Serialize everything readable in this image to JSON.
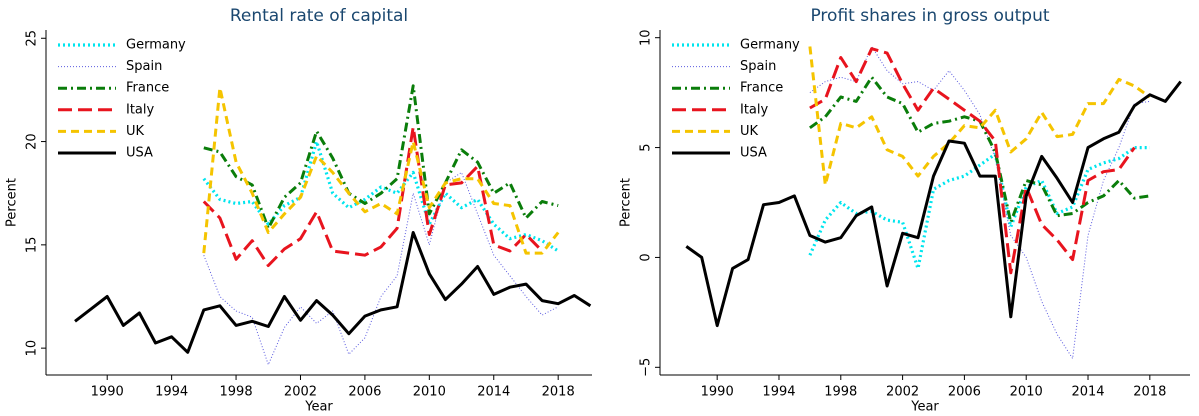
{
  "chart_data": [
    {
      "type": "line",
      "title": "Rental rate of capital",
      "x_label": "Year",
      "y_label": "Percent",
      "x": [
        1988,
        1989,
        1990,
        1991,
        1992,
        1993,
        1994,
        1995,
        1996,
        1997,
        1998,
        1999,
        2000,
        2001,
        2002,
        2003,
        2004,
        2005,
        2006,
        2007,
        2008,
        2009,
        2010,
        2011,
        2012,
        2013,
        2014,
        2015,
        2016,
        2017,
        2018,
        2019,
        2020
      ],
      "xlim": [
        1986.2,
        2020.1
      ],
      "xticks": [
        1990,
        1994,
        1998,
        2002,
        2006,
        2010,
        2014,
        2018
      ],
      "ylim": [
        8.7,
        25.4
      ],
      "yticks": [
        10,
        15,
        20,
        25
      ],
      "legend": "upper left",
      "series": [
        {
          "name": "Germany",
          "color": "#00e5ee",
          "values": [
            null,
            null,
            null,
            null,
            null,
            null,
            null,
            null,
            18.2,
            17.2,
            17.0,
            17.1,
            16.0,
            16.9,
            17.3,
            20.0,
            17.5,
            16.8,
            17.2,
            17.8,
            17.5,
            18.5,
            16.0,
            17.5,
            16.8,
            17.2,
            16.0,
            15.3,
            15.5,
            15.2,
            14.7,
            null,
            null
          ]
        },
        {
          "name": "Spain",
          "color": "#5a5ae0",
          "values": [
            null,
            null,
            null,
            null,
            null,
            null,
            null,
            null,
            14.5,
            12.5,
            11.8,
            11.5,
            9.2,
            11.0,
            12.0,
            11.2,
            11.8,
            9.7,
            10.5,
            12.5,
            13.5,
            17.5,
            15.0,
            18.0,
            18.5,
            16.5,
            14.5,
            13.5,
            12.5,
            11.6,
            12.0,
            null,
            null
          ]
        },
        {
          "name": "France",
          "color": "#0a7d0a",
          "values": [
            null,
            null,
            null,
            null,
            null,
            null,
            null,
            null,
            19.7,
            19.5,
            18.3,
            17.9,
            15.8,
            17.3,
            18.0,
            20.5,
            19.2,
            17.5,
            17.0,
            17.5,
            18.2,
            22.7,
            16.5,
            18.0,
            19.6,
            19.0,
            17.5,
            18.0,
            16.3,
            17.1,
            16.9,
            null,
            null
          ]
        },
        {
          "name": "Italy",
          "color": "#e8141e",
          "values": [
            null,
            null,
            null,
            null,
            null,
            null,
            null,
            null,
            17.1,
            16.3,
            14.3,
            15.2,
            14.0,
            14.8,
            15.3,
            16.6,
            14.7,
            14.6,
            14.5,
            14.9,
            15.8,
            20.7,
            15.5,
            17.9,
            18.0,
            18.8,
            15.0,
            14.7,
            15.5,
            14.7,
            null,
            null,
            null
          ]
        },
        {
          "name": "UK",
          "color": "#f5c400",
          "values": [
            null,
            null,
            null,
            null,
            null,
            null,
            null,
            null,
            14.6,
            22.6,
            19.0,
            17.5,
            15.6,
            16.5,
            17.3,
            19.3,
            18.5,
            17.5,
            16.6,
            17.0,
            16.5,
            20.0,
            16.8,
            18.0,
            18.2,
            18.2,
            17.0,
            16.9,
            14.6,
            14.6,
            15.6,
            null,
            null
          ]
        },
        {
          "name": "USA",
          "color": "#000000",
          "values": [
            11.3,
            11.9,
            12.5,
            11.1,
            11.7,
            10.25,
            10.55,
            9.8,
            11.85,
            12.05,
            11.1,
            11.3,
            11.05,
            12.5,
            11.35,
            12.3,
            11.6,
            10.7,
            11.55,
            11.85,
            12.0,
            15.6,
            13.6,
            12.35,
            13.1,
            13.95,
            12.6,
            12.95,
            13.1,
            12.3,
            12.15,
            12.55,
            12.05
          ]
        }
      ]
    },
    {
      "type": "line",
      "title": "Profit shares in gross output",
      "x_label": "Year",
      "y_label": "Percent",
      "x": [
        1988,
        1989,
        1990,
        1991,
        1992,
        1993,
        1994,
        1995,
        1996,
        1997,
        1998,
        1999,
        2000,
        2001,
        2002,
        2003,
        2004,
        2005,
        2006,
        2007,
        2008,
        2009,
        2010,
        2011,
        2012,
        2013,
        2014,
        2015,
        2016,
        2017,
        2018,
        2019,
        2020
      ],
      "xlim": [
        1986.3,
        2020.6
      ],
      "xticks": [
        1990,
        1994,
        1998,
        2002,
        2006,
        2010,
        2014,
        2018
      ],
      "ylim": [
        -5.35,
        10.35
      ],
      "yticks": [
        {
          "value": -5,
          "label": "−5"
        },
        0,
        5,
        10
      ],
      "legend": "upper left",
      "series": [
        {
          "name": "Germany",
          "color": "#00e5ee",
          "values": [
            null,
            null,
            null,
            null,
            null,
            null,
            null,
            null,
            0.1,
            1.7,
            2.5,
            2.0,
            2.1,
            1.7,
            1.6,
            -0.5,
            3.1,
            3.5,
            3.7,
            4.2,
            4.7,
            1.4,
            3.2,
            3.5,
            2.0,
            2.3,
            4.0,
            4.3,
            4.5,
            5.0,
            5.0,
            null,
            null
          ]
        },
        {
          "name": "Spain",
          "color": "#5a5ae0",
          "values": [
            null,
            null,
            null,
            null,
            null,
            null,
            null,
            null,
            7.5,
            8.0,
            8.2,
            8.0,
            9.6,
            8.5,
            7.9,
            8.0,
            7.6,
            8.5,
            7.6,
            6.5,
            4.5,
            1.0,
            0.0,
            -2.0,
            -3.5,
            -4.6,
            1.0,
            3.5,
            5.0,
            7.0,
            7.1,
            null,
            null
          ]
        },
        {
          "name": "France",
          "color": "#0a7d0a",
          "values": [
            null,
            null,
            null,
            null,
            null,
            null,
            null,
            null,
            5.9,
            6.4,
            7.3,
            7.1,
            8.2,
            7.3,
            7.0,
            5.7,
            6.1,
            6.2,
            6.4,
            6.2,
            4.8,
            1.6,
            3.5,
            3.3,
            1.9,
            2.0,
            2.5,
            2.8,
            3.5,
            2.7,
            2.8,
            null,
            null
          ]
        },
        {
          "name": "Italy",
          "color": "#e8141e",
          "values": [
            null,
            null,
            null,
            null,
            null,
            null,
            null,
            null,
            6.8,
            7.2,
            9.1,
            8.0,
            9.5,
            9.3,
            7.9,
            6.7,
            7.7,
            7.2,
            6.7,
            6.2,
            5.3,
            -0.7,
            3.2,
            1.5,
            0.8,
            -0.1,
            3.5,
            3.9,
            4.0,
            5.0,
            null,
            null,
            null
          ]
        },
        {
          "name": "UK",
          "color": "#f5c400",
          "values": [
            null,
            null,
            null,
            null,
            null,
            null,
            null,
            null,
            9.6,
            3.3,
            6.1,
            5.9,
            6.4,
            4.9,
            4.6,
            3.7,
            4.6,
            5.2,
            6.0,
            5.9,
            6.7,
            4.8,
            5.4,
            6.6,
            5.5,
            5.6,
            7.0,
            7.0,
            8.1,
            7.8,
            7.3,
            null,
            null
          ]
        },
        {
          "name": "USA",
          "color": "#000000",
          "values": [
            0.5,
            0.0,
            -3.1,
            -0.5,
            -0.1,
            2.4,
            2.5,
            2.8,
            1.0,
            0.7,
            0.9,
            1.9,
            2.3,
            -1.3,
            1.1,
            0.9,
            3.7,
            5.3,
            5.2,
            3.7,
            3.7,
            -2.7,
            2.8,
            4.6,
            3.6,
            2.5,
            5.0,
            5.4,
            5.7,
            6.9,
            7.4,
            7.1,
            8.0
          ]
        }
      ]
    }
  ]
}
